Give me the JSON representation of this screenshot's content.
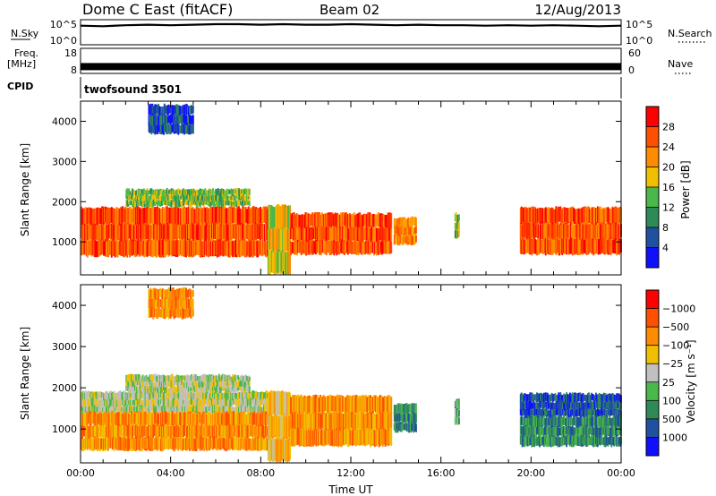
{
  "header": {
    "station": "Dome C East (fitACF)",
    "beam": "Beam 02",
    "date": "12/Aug/2013"
  },
  "chart_data": [
    {
      "type": "line",
      "panel": "noise",
      "left_label": "N.Sky",
      "right_label": "N.Search",
      "left_ticks": [
        "10^5",
        "10^0"
      ],
      "right_ticks": [
        "10^5",
        "10^0"
      ],
      "x": [
        0,
        1,
        2,
        3,
        4,
        5,
        6,
        7,
        8,
        9,
        10,
        11,
        12,
        13,
        14,
        15,
        16,
        17,
        18,
        19,
        20,
        21,
        22,
        23,
        24
      ],
      "series": [
        {
          "values": [
            3.8,
            3.7,
            3.9,
            4.0,
            3.9,
            4.0,
            4.1,
            4.1,
            4.0,
            4.1,
            4.0,
            4.0,
            4.1,
            4.0,
            3.9,
            4.0,
            3.9,
            3.9,
            3.8,
            3.9,
            3.8,
            3.9,
            3.8,
            3.7,
            3.8
          ]
        }
      ]
    },
    {
      "type": "line",
      "panel": "frequency",
      "left_label": "Freq.",
      "left_unit": "[MHz]",
      "right_label": "Nave",
      "left_ticks": [
        "18",
        "8"
      ],
      "right_ticks": [
        "60",
        "0"
      ],
      "x": [
        0,
        24
      ],
      "series": [
        {
          "values": [
            10,
            10
          ]
        }
      ]
    },
    {
      "type": "text",
      "panel": "cpid",
      "label": "CPID",
      "value": "twofsound 3501"
    },
    {
      "type": "heatmap",
      "panel": "power",
      "ylabel": "Slant Range [km]",
      "ylim": [
        180,
        4500
      ],
      "yticks": [
        "1000",
        "2000",
        "3000",
        "4000"
      ],
      "xlim": [
        0,
        24
      ],
      "colorbar_label": "Power [dB]",
      "colorbar_ticks": [
        "4",
        "8",
        "12",
        "16",
        "20",
        "24",
        "28"
      ],
      "colors": [
        "#1010ff",
        "#2050a0",
        "#2e8b57",
        "#4ab84a",
        "#f0c000",
        "#ff8c00",
        "#ff5000",
        "#ff0000"
      ],
      "bands": [
        {
          "x0": 0.0,
          "x1": 8.3,
          "y0": 650,
          "y1": 1850,
          "level": 6
        },
        {
          "x0": 8.3,
          "x1": 9.3,
          "y0": 220,
          "y1": 1900,
          "level": 4
        },
        {
          "x0": 9.3,
          "x1": 13.8,
          "y0": 700,
          "y1": 1700,
          "level": 6
        },
        {
          "x0": 13.9,
          "x1": 14.9,
          "y0": 950,
          "y1": 1600,
          "level": 5
        },
        {
          "x0": 16.6,
          "x1": 16.8,
          "y0": 1100,
          "y1": 1700,
          "level": 3
        },
        {
          "x0": 19.5,
          "x1": 24.0,
          "y0": 700,
          "y1": 1850,
          "level": 6
        },
        {
          "x0": 2.0,
          "x1": 7.5,
          "y0": 1900,
          "y1": 2300,
          "level": 3
        },
        {
          "x0": 3.0,
          "x1": 5.0,
          "y0": 3700,
          "y1": 4400,
          "level": 1
        }
      ]
    },
    {
      "type": "heatmap",
      "panel": "velocity",
      "ylabel": "Slant Range [km]",
      "ylim": [
        180,
        4500
      ],
      "yticks": [
        "1000",
        "2000",
        "3000",
        "4000"
      ],
      "xlim": [
        0,
        24
      ],
      "xticks": [
        "00:00",
        "04:00",
        "08:00",
        "12:00",
        "16:00",
        "20:00",
        "00:00"
      ],
      "xlabel": "Time UT",
      "colorbar_label": "Velocity [m s⁻¹]",
      "colorbar_ticks": [
        "1000",
        "500",
        "100",
        "25",
        "−25",
        "−100",
        "−500",
        "−1000"
      ],
      "colors": [
        "#1010ff",
        "#2050a0",
        "#2e8b57",
        "#4ab84a",
        "#c0c0c0",
        "#f0c000",
        "#ff8c00",
        "#ff5000",
        "#ff0000"
      ],
      "bands": [
        {
          "x0": 0.0,
          "x1": 8.3,
          "y0": 1400,
          "y1": 1900,
          "level": 4
        },
        {
          "x0": 0.0,
          "x1": 8.3,
          "y0": 500,
          "y1": 1400,
          "level": 6
        },
        {
          "x0": 8.3,
          "x1": 9.3,
          "y0": 220,
          "y1": 1900,
          "level": 5
        },
        {
          "x0": 9.3,
          "x1": 13.8,
          "y0": 600,
          "y1": 1800,
          "level": 6
        },
        {
          "x0": 13.9,
          "x1": 14.9,
          "y0": 950,
          "y1": 1600,
          "level": 2
        },
        {
          "x0": 16.6,
          "x1": 16.8,
          "y0": 1100,
          "y1": 1700,
          "level": 3
        },
        {
          "x0": 19.5,
          "x1": 24.0,
          "y0": 1300,
          "y1": 1850,
          "level": 1
        },
        {
          "x0": 19.5,
          "x1": 24.0,
          "y0": 600,
          "y1": 1300,
          "level": 2
        },
        {
          "x0": 2.0,
          "x1": 7.5,
          "y0": 1900,
          "y1": 2300,
          "level": 4
        },
        {
          "x0": 3.0,
          "x1": 5.0,
          "y0": 3700,
          "y1": 4400,
          "level": 6
        }
      ]
    }
  ]
}
